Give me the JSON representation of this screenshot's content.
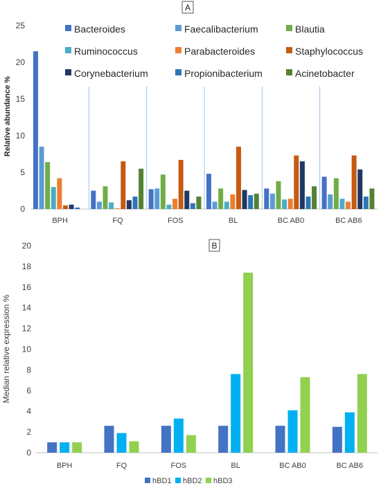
{
  "chart_data": [
    {
      "panel_label": "A",
      "type": "bar",
      "ylabel": "Relative abundance %",
      "ylim": [
        0,
        25
      ],
      "yticks": [
        "0",
        "5",
        "10",
        "15",
        "20",
        "25"
      ],
      "categories": [
        "BPH",
        "FQ",
        "FOS",
        "BL",
        "BC AB0",
        "BC AB6"
      ],
      "legend_position": "top",
      "series": [
        {
          "name": "Bacteroides",
          "color": "#4472C4",
          "values": [
            21.5,
            2.5,
            2.7,
            4.8,
            2.8,
            4.4
          ]
        },
        {
          "name": "Faecalibacterium",
          "color": "#5B9BD5",
          "values": [
            8.5,
            1.0,
            2.8,
            1.0,
            2.1,
            2.0
          ]
        },
        {
          "name": "Blautia",
          "color": "#70AD47",
          "values": [
            6.4,
            3.1,
            4.7,
            2.8,
            3.8,
            4.2
          ]
        },
        {
          "name": "Ruminococcus",
          "color": "#4BACC6",
          "values": [
            3.0,
            0.9,
            0.6,
            1.0,
            1.3,
            1.4
          ]
        },
        {
          "name": "Parabacteroides",
          "color": "#ED7D31",
          "values": [
            4.2,
            0.1,
            1.4,
            2.0,
            1.4,
            1.0
          ]
        },
        {
          "name": "Staphylococcus",
          "color": "#C55A11",
          "values": [
            0.5,
            6.5,
            6.7,
            8.5,
            7.3,
            7.3
          ]
        },
        {
          "name": "Corynebacterium",
          "color": "#203864",
          "values": [
            0.6,
            1.2,
            2.5,
            2.6,
            6.5,
            5.4
          ]
        },
        {
          "name": "Propionibacterium",
          "color": "#2E75B6",
          "values": [
            0.2,
            1.7,
            0.8,
            1.9,
            1.7,
            1.7
          ]
        },
        {
          "name": "Acinetobacter",
          "color": "#548235",
          "values": [
            0.0,
            5.5,
            1.7,
            2.1,
            3.1,
            2.8
          ]
        }
      ]
    },
    {
      "panel_label": "B",
      "type": "bar",
      "ylabel": "Median relative expression %",
      "ylim": [
        0,
        20
      ],
      "yticks": [
        "0",
        "2",
        "4",
        "6",
        "8",
        "10",
        "12",
        "14",
        "16",
        "18",
        "20"
      ],
      "categories": [
        "BPH",
        "FQ",
        "FOS",
        "BL",
        "BC AB0",
        "BC AB6"
      ],
      "legend_position": "bottom",
      "series": [
        {
          "name": "hBD1",
          "color": "#4472C4",
          "values": [
            1.0,
            2.6,
            2.6,
            2.6,
            2.6,
            2.5
          ]
        },
        {
          "name": "hBD2",
          "color": "#00B0F0",
          "values": [
            1.0,
            1.9,
            3.3,
            7.6,
            4.1,
            3.9
          ]
        },
        {
          "name": "hBD3",
          "color": "#92D050",
          "values": [
            1.0,
            1.1,
            1.7,
            17.4,
            7.3,
            7.6
          ]
        }
      ]
    }
  ]
}
